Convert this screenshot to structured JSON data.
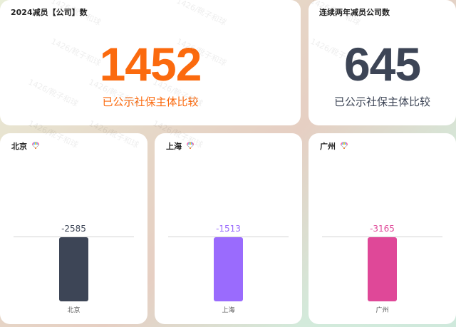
{
  "cards": [
    {
      "title": "2024减员【公司】数",
      "value": "1452",
      "subtitle": "已公示社保主体比较",
      "color": "#fb6a0e"
    },
    {
      "title": "连续两年减员公司数",
      "value": "645",
      "subtitle": "已公示社保主体比较",
      "color": "#3d4556"
    }
  ],
  "charts": [
    {
      "title": "北京",
      "icon": "parachute-icon",
      "category": "北京",
      "value": -2585,
      "value_label": "-2585",
      "color": "#3d4556"
    },
    {
      "title": "上海",
      "icon": "parachute-icon",
      "category": "上海",
      "value": -1513,
      "value_label": "-1513",
      "color": "#9a6bfd"
    },
    {
      "title": "广州",
      "icon": "parachute-icon",
      "category": "广州",
      "value": -3165,
      "value_label": "-3165",
      "color": "#df4898"
    }
  ],
  "watermark": "1426/靴子和球"
}
